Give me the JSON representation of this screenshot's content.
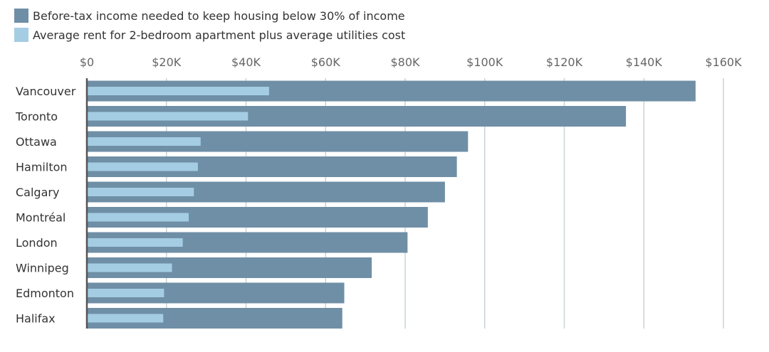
{
  "chart_data": {
    "type": "bar",
    "orientation": "horizontal",
    "categories": [
      "Vancouver",
      "Toronto",
      "Ottawa",
      "Hamilton",
      "Calgary",
      "Montréal",
      "London",
      "Winnipeg",
      "Edmonton",
      "Halifax"
    ],
    "series": [
      {
        "name": "Before-tax income needed to keep housing below 30% of income",
        "color": "#6f8fa6",
        "values": [
          153000,
          135500,
          95800,
          93000,
          90000,
          85700,
          80600,
          71600,
          64700,
          64200
        ]
      },
      {
        "name": "Average rent for 2-bedroom apartment plus average utilities cost",
        "color": "#a4cde3",
        "values": [
          45800,
          40500,
          28600,
          27900,
          26900,
          25600,
          24100,
          21400,
          19400,
          19200
        ]
      }
    ],
    "xlim": [
      0,
      160000
    ],
    "x_ticks": [
      0,
      20000,
      40000,
      60000,
      80000,
      100000,
      120000,
      140000,
      160000
    ],
    "x_tick_labels": [
      "$0",
      "$20K",
      "$40K",
      "$60K",
      "$80K",
      "$100K",
      "$120K",
      "$140K",
      "$160K"
    ],
    "x_axis_position": "top",
    "legend_position": "top-left",
    "grid": "vertical"
  }
}
